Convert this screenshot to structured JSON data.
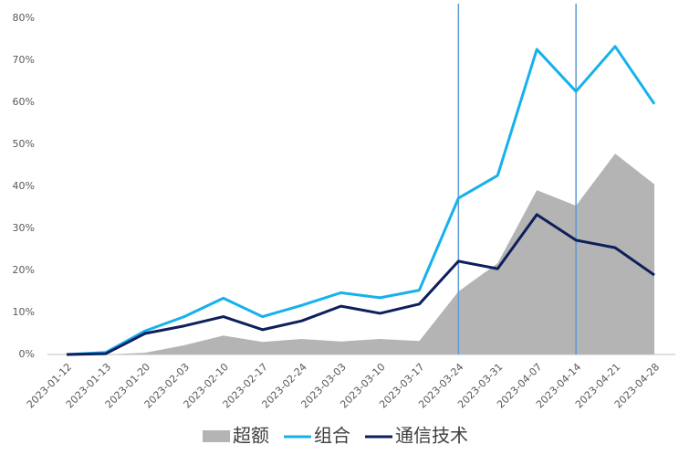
{
  "chart_data": {
    "type": "line",
    "categories": [
      "2023-01-12",
      "2023-01-13",
      "2023-01-20",
      "2023-02-03",
      "2023-02-10",
      "2023-02-17",
      "2023-02-24",
      "2023-03-03",
      "2023-03-10",
      "2023-03-17",
      "2023-03-24",
      "2023-03-31",
      "2023-04-07",
      "2023-04-14",
      "2023-04-21",
      "2023-04-28"
    ],
    "series": [
      {
        "name": "超额",
        "type": "area",
        "color": "#b4b4b4",
        "values": [
          0,
          0,
          0.4,
          2.2,
          4.5,
          3.0,
          3.7,
          3.1,
          3.7,
          3.2,
          15,
          21.7,
          39.1,
          35.4,
          47.8,
          40.5
        ]
      },
      {
        "name": "组合",
        "type": "line",
        "color": "#16b1ec",
        "values": [
          0,
          0.5,
          5.6,
          9,
          13.4,
          9,
          11.7,
          14.7,
          13.5,
          15.3,
          37.2,
          42.6,
          72.6,
          62.6,
          73.3,
          59.6
        ]
      },
      {
        "name": "通信技术",
        "type": "line",
        "color": "#0d1f5c",
        "values": [
          0,
          0.2,
          5,
          6.8,
          9,
          5.9,
          8,
          11.5,
          9.8,
          12,
          22.2,
          20.4,
          33.3,
          27.2,
          25.4,
          18.9
        ]
      }
    ],
    "vlines": [
      "2023-03-24",
      "2023-04-14"
    ],
    "vline_color": "#5b9bd5",
    "ylim": [
      0,
      80
    ],
    "yticks": [
      {
        "value": 0,
        "label": "0%"
      },
      {
        "value": 10,
        "label": "10%"
      },
      {
        "value": 20,
        "label": "20%"
      },
      {
        "value": 30,
        "label": "30%"
      },
      {
        "value": 40,
        "label": "40%"
      },
      {
        "value": 50,
        "label": "50%"
      },
      {
        "value": 60,
        "label": "60%"
      },
      {
        "value": 70,
        "label": "70%"
      },
      {
        "value": 80,
        "label": "80%"
      }
    ],
    "grid": false,
    "legend": "bottom"
  }
}
